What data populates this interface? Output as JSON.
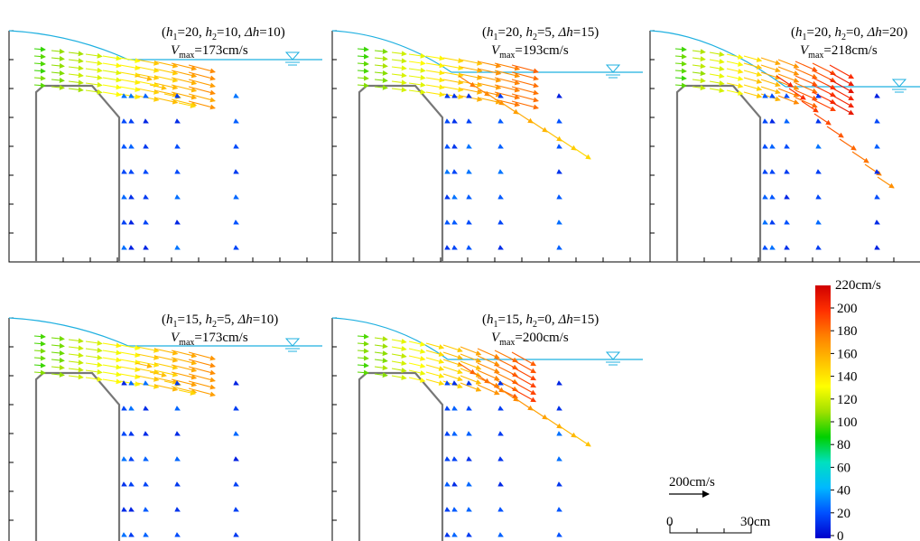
{
  "chart_data": {
    "type": "vector-field",
    "colorbar": {
      "unit_label": "220cm/s",
      "ticks": [
        "200",
        "180",
        "160",
        "140",
        "120",
        "100",
        "80",
        "60",
        "40",
        "20",
        "0"
      ],
      "range": [
        0,
        220
      ],
      "colors": [
        "#0000cc",
        "#0050ff",
        "#00b8ff",
        "#00e0c0",
        "#00d000",
        "#a0e000",
        "#ffff00",
        "#ffc000",
        "#ff8000",
        "#ff3000",
        "#d00000"
      ]
    },
    "reference_vector": {
      "label": "200cm/s",
      "value": 200
    },
    "scale_bar": {
      "start_label": "0",
      "end_label": "30cm",
      "length": 30
    },
    "panels": [
      {
        "id": "a",
        "h1": "20",
        "h2": "10",
        "dh": "10",
        "vmax": "=173cm/s",
        "v": 173
      },
      {
        "id": "b",
        "h1": "20",
        "h2": "5",
        "dh": "15",
        "vmax": "=193cm/s",
        "v": 193
      },
      {
        "id": "c",
        "h1": "20",
        "h2": "0",
        "dh": "20",
        "vmax": "=218cm/s",
        "v": 218
      },
      {
        "id": "d",
        "h1": "15",
        "h2": "5",
        "dh": "10",
        "vmax": "=173cm/s",
        "v": 173
      },
      {
        "id": "e",
        "h1": "15",
        "h2": "0",
        "dh": "15",
        "vmax": "=200cm/s",
        "v": 200
      }
    ],
    "label_parts": {
      "open": "(",
      "h": "h",
      "sub1": "1",
      "sub2": "2",
      "eq": "=",
      "sep": ", ",
      "dh": "Δh",
      "close": ")",
      "V": "V",
      "max": "max"
    }
  }
}
